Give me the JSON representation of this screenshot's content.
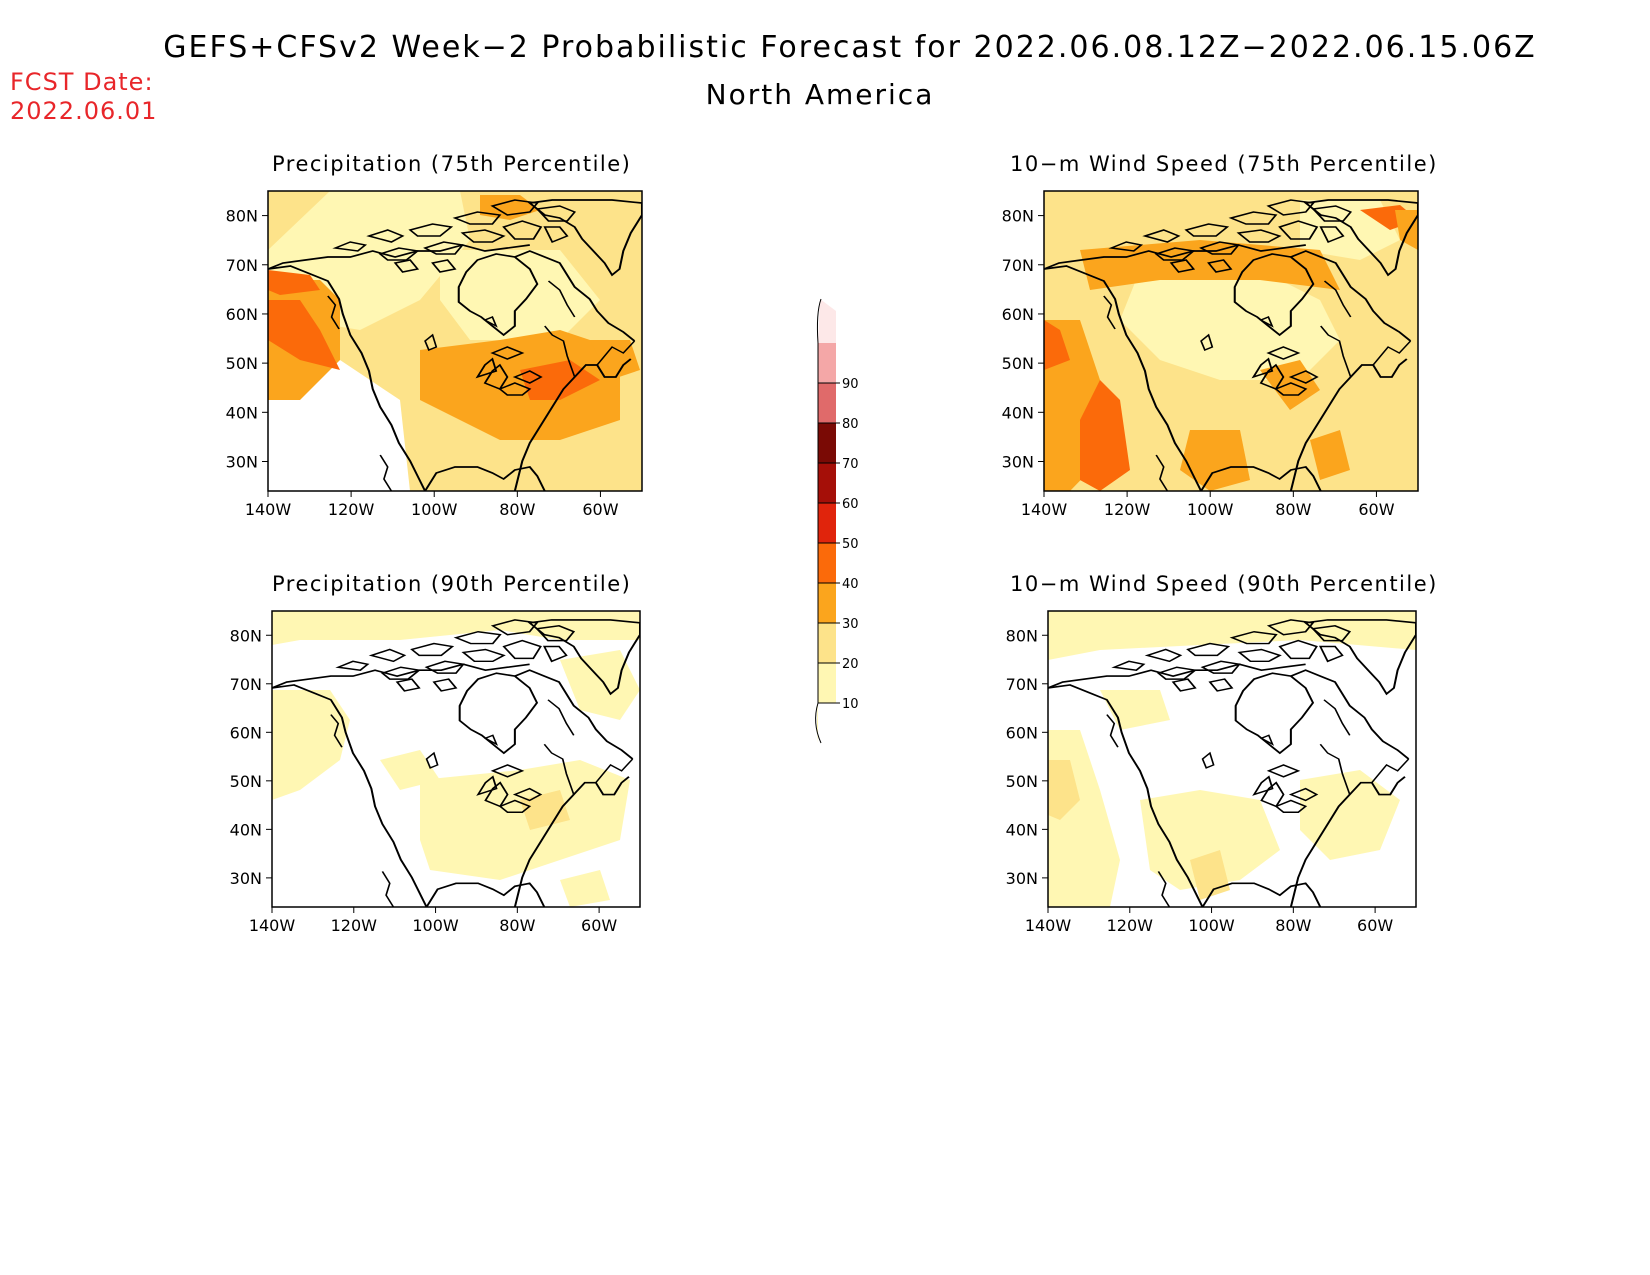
{
  "header": {
    "title": "GEFS+CFSv2 Week−2 Probabilistic Forecast for 2022.06.08.12Z−2022.06.15.06Z",
    "subtitle": "North America",
    "fcst_date_label": "FCST Date:",
    "fcst_date_value": "2022.06.01"
  },
  "axes": {
    "lat_labels": [
      "80N",
      "70N",
      "60N",
      "50N",
      "40N",
      "30N"
    ],
    "lon_labels": [
      "140W",
      "120W",
      "100W",
      "80W",
      "60W"
    ]
  },
  "panels": [
    {
      "id": "precip75",
      "title": "Precipitation (75th Percentile)"
    },
    {
      "id": "wind75",
      "title": "10−m Wind Speed (75th Percentile)"
    },
    {
      "id": "precip90",
      "title": "Precipitation (90th Percentile)"
    },
    {
      "id": "wind90",
      "title": "10−m Wind Speed (90th Percentile)"
    }
  ],
  "colorbar": {
    "levels": [
      "10",
      "20",
      "30",
      "40",
      "50",
      "60",
      "70",
      "80",
      "90"
    ],
    "colors": [
      "#fff7b3",
      "#fde38a",
      "#fba51d",
      "#fb6a0a",
      "#e0240c",
      "#a50f08",
      "#7a0a05",
      "#e06a6a",
      "#f4a7a7",
      "#fde8e8"
    ]
  }
}
